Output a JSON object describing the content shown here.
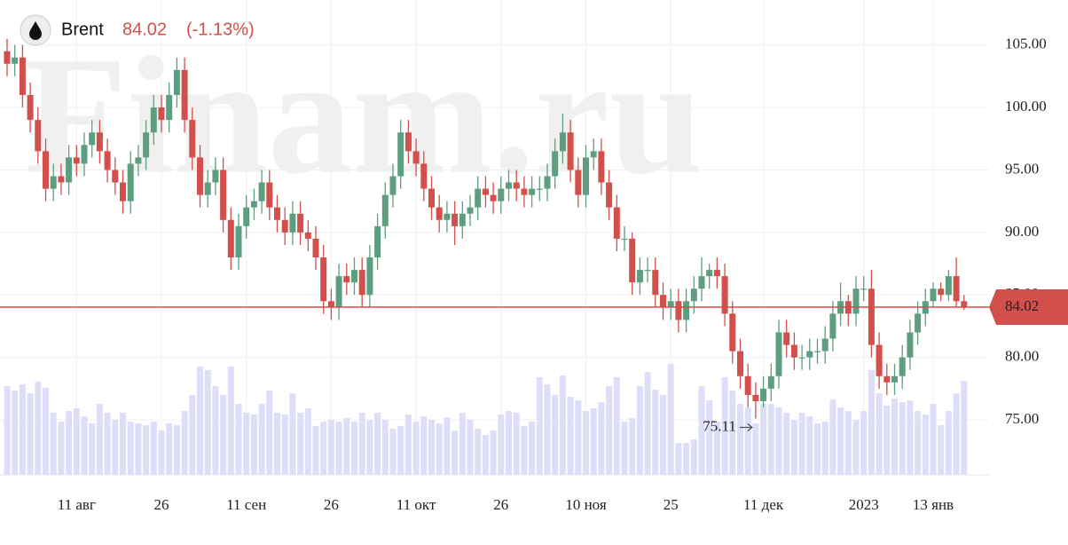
{
  "chart_data": {
    "type": "candlestick",
    "watermark": "Finam.ru",
    "series": [
      {
        "name": "Brent",
        "open": [
          104.5,
          103.5,
          104,
          101,
          99,
          96.5,
          93.5,
          94.5,
          94,
          96,
          95.5,
          97,
          98,
          96.5,
          95,
          94,
          92.5,
          95.5,
          96,
          98,
          100,
          99,
          101,
          103,
          99,
          96,
          93,
          94,
          95,
          91,
          88,
          90.5,
          92,
          92.5,
          94,
          92,
          91,
          90,
          91.5,
          90,
          89.5,
          88,
          84.5,
          84,
          86.5,
          86,
          87,
          85,
          88,
          90.5,
          93,
          94.5,
          98,
          96.5,
          95.5,
          93.5,
          92,
          91,
          91.5,
          90.5,
          91.5,
          92,
          93.5,
          93,
          92.5,
          93.5,
          94,
          93.5,
          93,
          93.5,
          93.5,
          94.5,
          96.5,
          98,
          95,
          93,
          96,
          96.5,
          94,
          92,
          89.5,
          89.5,
          86,
          87,
          87,
          85,
          84,
          84.5,
          83,
          84.5,
          85.5,
          86.5,
          87,
          86.5,
          83.5,
          80.5,
          78.5,
          77,
          76.5,
          77.5,
          78.5,
          82,
          81,
          80,
          80,
          80.5,
          80.5,
          81.5,
          83.5,
          84.5,
          83.5,
          85.5,
          85.5,
          81,
          78.5,
          78,
          78.5,
          80,
          82,
          83.5,
          84.5,
          85.5,
          85,
          86.5,
          84.5
        ],
        "high": [
          105.5,
          105,
          105,
          102,
          100,
          97.5,
          95.5,
          95.5,
          97,
          97,
          98,
          99,
          99,
          97.5,
          96,
          95,
          96.5,
          97,
          99,
          101,
          101,
          102,
          104,
          104,
          100,
          97,
          95,
          96,
          96,
          92,
          91.5,
          93,
          93.5,
          95,
          95,
          93,
          92,
          92.5,
          92.5,
          91,
          90.5,
          89,
          85.5,
          87.5,
          87.5,
          88,
          88,
          89,
          91.5,
          94,
          95.5,
          99,
          99,
          97.5,
          96.5,
          94.5,
          93,
          92.5,
          92.5,
          92.5,
          93,
          94.5,
          94.5,
          94,
          94.5,
          95,
          95,
          94.5,
          94.5,
          94.5,
          95.5,
          97.5,
          99.5,
          99,
          96,
          97,
          97.5,
          97.5,
          95,
          93,
          90.5,
          90,
          88,
          88,
          88,
          86,
          85.5,
          85.5,
          85.5,
          86.5,
          88,
          87.5,
          88,
          87.5,
          84.5,
          81.5,
          79.5,
          78,
          78.5,
          79.5,
          83,
          83,
          82,
          81,
          81.5,
          81.5,
          82.5,
          84.5,
          86,
          85,
          86.5,
          86.5,
          87,
          82,
          79.5,
          79.5,
          81,
          83,
          84.5,
          85.5,
          86,
          86,
          87,
          88,
          85
        ],
        "low": [
          102.5,
          102.5,
          100,
          98,
          95.5,
          92.5,
          92.5,
          93,
          93,
          94.5,
          94.5,
          96,
          95.5,
          94,
          93,
          91.5,
          91.5,
          94.5,
          95,
          97,
          98,
          98,
          100,
          98,
          95,
          92,
          92,
          93,
          90,
          87,
          87,
          89.5,
          91,
          91.5,
          91,
          90,
          89,
          89,
          89,
          88.5,
          87,
          83.5,
          83,
          83,
          85,
          85,
          84,
          84,
          87,
          89.5,
          92,
          93.5,
          95.5,
          94.5,
          92.5,
          91,
          90,
          90,
          89,
          89.5,
          90.5,
          91,
          92,
          91.5,
          91.5,
          92.5,
          92.5,
          92,
          92,
          92.5,
          92.5,
          93.5,
          95.5,
          94,
          92,
          92,
          95,
          93,
          91,
          88.5,
          88.5,
          85,
          85,
          86,
          84,
          83,
          83,
          82,
          82,
          83.5,
          84.5,
          85.5,
          85.5,
          82.5,
          79.5,
          77.5,
          76,
          75.11,
          76,
          76.5,
          77.5,
          80,
          79,
          79,
          79,
          79.5,
          79.5,
          80.5,
          82.5,
          82.5,
          82.5,
          84.5,
          80,
          77.5,
          77,
          77,
          77.5,
          79,
          81,
          82.5,
          84,
          84.5,
          84.5,
          84,
          83.8
        ],
        "close": [
          103.5,
          104,
          101,
          99,
          96.5,
          93.5,
          94.5,
          94,
          96,
          95.5,
          97,
          98,
          96.5,
          95,
          94,
          92.5,
          95.5,
          96,
          98,
          100,
          99,
          101,
          103,
          99,
          96,
          93,
          94,
          95,
          91,
          88,
          90.5,
          92,
          92.5,
          94,
          92,
          91,
          90,
          91.5,
          90,
          89.5,
          88,
          84.5,
          84,
          86.5,
          86,
          87,
          85,
          88,
          90.5,
          93,
          94.5,
          98,
          96.5,
          95.5,
          93.5,
          92,
          91,
          91.5,
          90.5,
          91.5,
          92,
          93.5,
          93,
          92.5,
          93.5,
          94,
          93.5,
          93,
          93.5,
          93.5,
          94.5,
          96.5,
          98,
          95,
          93,
          96,
          96.5,
          94,
          92,
          89.5,
          89.5,
          86,
          87,
          87,
          85,
          84,
          84.5,
          83,
          84.5,
          85.5,
          86.5,
          87,
          86.5,
          83.5,
          80.5,
          78.5,
          77,
          76.5,
          77.5,
          78.5,
          82,
          81,
          80,
          80,
          80.5,
          80.5,
          81.5,
          83.5,
          84.5,
          83.5,
          85.5,
          85.5,
          81,
          78.5,
          78,
          78.5,
          80,
          82,
          83.5,
          84.5,
          85.5,
          85,
          86.5,
          84.5,
          84.02
        ],
        "volume": [
          100,
          95,
          102,
          92,
          105,
          98,
          70,
          60,
          72,
          75,
          66,
          58,
          80,
          70,
          62,
          70,
          60,
          58,
          56,
          60,
          50,
          58,
          56,
          72,
          90,
          122,
          118,
          100,
          90,
          122,
          80,
          70,
          68,
          80,
          95,
          70,
          68,
          92,
          70,
          75,
          55,
          60,
          62,
          60,
          64,
          60,
          70,
          62,
          70,
          62,
          52,
          55,
          68,
          60,
          66,
          62,
          58,
          65,
          50,
          70,
          62,
          52,
          45,
          50,
          68,
          72,
          70,
          55,
          60,
          110,
          102,
          90,
          112,
          88,
          84,
          72,
          75,
          82,
          100,
          110,
          60,
          64,
          100,
          116,
          96,
          90,
          125,
          36,
          36,
          40,
          100,
          84,
          60,
          110,
          95,
          80,
          76,
          58,
          80,
          80,
          76,
          70,
          62,
          70,
          66,
          58,
          60,
          85,
          76,
          72,
          62,
          72,
          118,
          92,
          78,
          86,
          82,
          84,
          72,
          68,
          80,
          56,
          72,
          92,
          106
        ]
      }
    ],
    "price_change": {
      "value": -1.13,
      "label": "(-1.13%)"
    },
    "ylim": [
      70.6,
      108.6
    ],
    "yticks": [
      {
        "value": 75,
        "label": "75.00"
      },
      {
        "value": 80,
        "label": "80.00"
      },
      {
        "value": 85,
        "label": "85.00"
      },
      {
        "value": 90,
        "label": "90.00"
      },
      {
        "value": 95,
        "label": "95.00"
      },
      {
        "value": 100,
        "label": "100.00"
      },
      {
        "value": 105,
        "label": "105.00"
      }
    ],
    "xticks": [
      {
        "value": 9,
        "label": "11 авг"
      },
      {
        "value": 20,
        "label": "26"
      },
      {
        "value": 31,
        "label": "11 сен"
      },
      {
        "value": 42,
        "label": "26"
      },
      {
        "value": 53,
        "label": "11 окт"
      },
      {
        "value": 64,
        "label": "26"
      },
      {
        "value": 75,
        "label": "10 ноя"
      },
      {
        "value": 86,
        "label": "25"
      },
      {
        "value": 98,
        "label": "11 дек"
      },
      {
        "value": 111,
        "label": "2023"
      },
      {
        "value": 120,
        "label": "13 янв"
      }
    ],
    "colors": {
      "up": "#5e9e80",
      "down": "#d24f4b",
      "volume": "#dedefb"
    },
    "grid": true
  }
}
